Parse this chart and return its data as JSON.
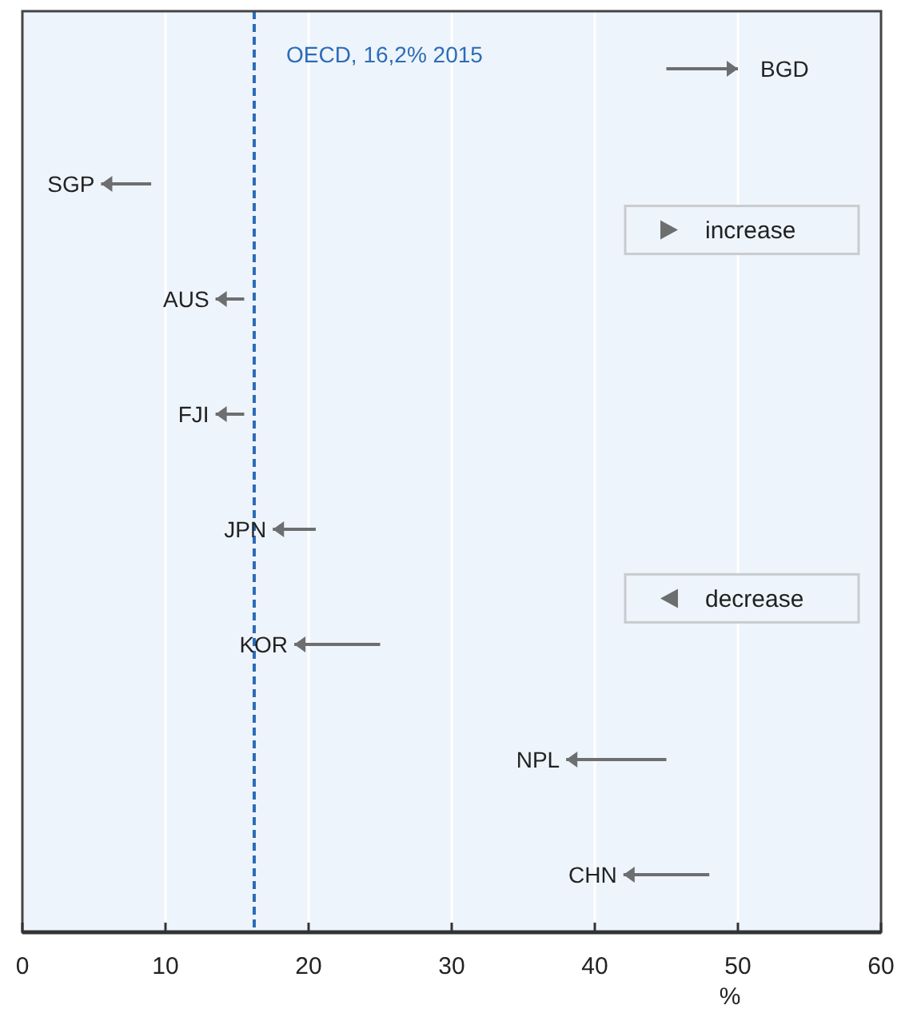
{
  "chart_data": {
    "type": "bar",
    "orientation": "horizontal",
    "categories": [
      "BGD",
      "SGP",
      "AUS",
      "FJI",
      "JPN",
      "KOR",
      "NPL",
      "CHN"
    ],
    "series": [
      {
        "name": "increase",
        "color": "#6d6e70",
        "base": [
          45,
          null,
          null,
          null,
          null,
          null,
          null,
          null
        ],
        "values": [
          5,
          null,
          null,
          null,
          null,
          null,
          null,
          null
        ]
      },
      {
        "name": "decrease",
        "color": "#6d6e70",
        "base": [
          null,
          9,
          15.5,
          15.5,
          20.5,
          25,
          45,
          48
        ],
        "values": [
          null,
          -3.5,
          -2,
          -2,
          -3,
          -6,
          -7,
          -6
        ]
      }
    ],
    "xlabel": "%",
    "xlim": [
      0,
      60
    ],
    "xticks": [
      0,
      10,
      20,
      30,
      40,
      50,
      60
    ],
    "grid": "x",
    "legend": "right",
    "ref_lines": [
      {
        "axis": "x",
        "value": 16.2,
        "label": "OECD, 16,2% 2015",
        "color": "#2b6cb8",
        "line_style": "dashed"
      }
    ]
  }
}
